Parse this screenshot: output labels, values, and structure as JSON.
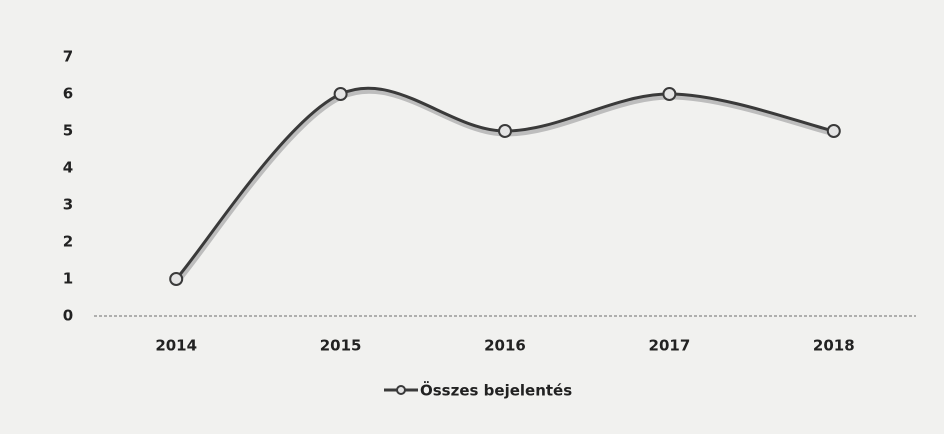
{
  "chart_data": {
    "type": "line",
    "categories": [
      "2014",
      "2015",
      "2016",
      "2017",
      "2018"
    ],
    "series": [
      {
        "name": "Összes bejelentés",
        "color": "#3a3a3a",
        "values": [
          1,
          6,
          5,
          6,
          5
        ]
      }
    ],
    "ylim": [
      0,
      7
    ],
    "yticks": [
      0,
      1,
      2,
      3,
      4,
      5,
      6,
      7
    ],
    "grid": false,
    "smooth": true,
    "legend": "bottom"
  }
}
